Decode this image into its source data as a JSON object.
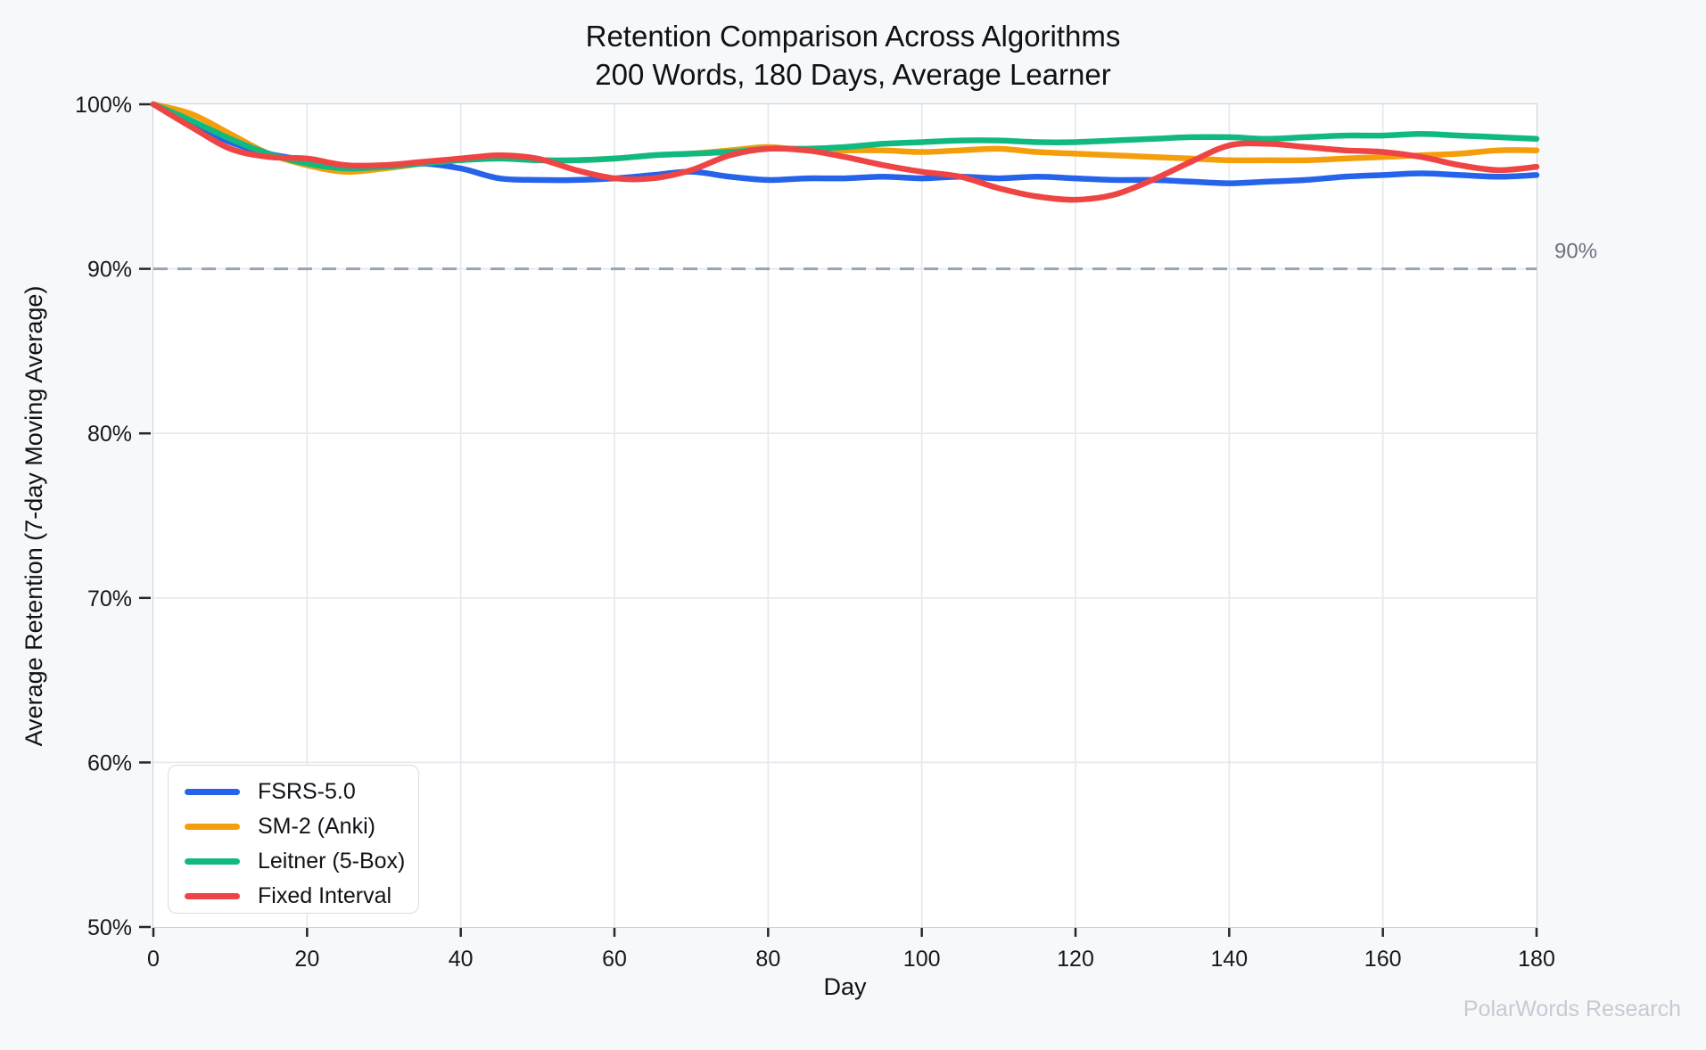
{
  "page": {
    "watermark": "PolarWords Research"
  },
  "chart_data": {
    "type": "line",
    "title": "Retention Comparison Across Algorithms",
    "subtitle": "200 Words, 180 Days, Average Learner",
    "xlabel": "Day",
    "ylabel": "Average Retention (7-day Moving Average)",
    "xlim": [
      0,
      180
    ],
    "ylim": [
      50,
      100
    ],
    "xticks": [
      0,
      20,
      40,
      60,
      80,
      100,
      120,
      140,
      160,
      180
    ],
    "yticks": [
      50,
      60,
      70,
      80,
      90,
      100
    ],
    "ytick_suffix": "%",
    "grid": true,
    "legend_position": "lower-left",
    "threshold": {
      "value": 90,
      "label": "90%",
      "color": "#9aa3b0",
      "style": "dashed"
    },
    "x": [
      0,
      5,
      10,
      15,
      20,
      25,
      30,
      35,
      40,
      45,
      50,
      55,
      60,
      65,
      70,
      75,
      80,
      85,
      90,
      95,
      100,
      105,
      110,
      115,
      120,
      125,
      130,
      135,
      140,
      145,
      150,
      155,
      160,
      165,
      170,
      175,
      180
    ],
    "series": [
      {
        "name": "FSRS-5.0",
        "color": "#2563eb",
        "values": [
          100,
          98.8,
          97.7,
          97.0,
          96.6,
          96.3,
          96.2,
          96.4,
          96.1,
          95.5,
          95.4,
          95.4,
          95.5,
          95.7,
          95.9,
          95.6,
          95.4,
          95.5,
          95.5,
          95.6,
          95.5,
          95.6,
          95.5,
          95.6,
          95.5,
          95.4,
          95.4,
          95.3,
          95.2,
          95.3,
          95.4,
          95.6,
          95.7,
          95.8,
          95.7,
          95.6,
          95.7
        ]
      },
      {
        "name": "SM-2 (Anki)",
        "color": "#f59e0b",
        "values": [
          100,
          99.4,
          98.2,
          97.0,
          96.3,
          95.9,
          96.1,
          96.4,
          96.7,
          96.8,
          96.6,
          96.6,
          96.7,
          96.9,
          97.0,
          97.2,
          97.4,
          97.2,
          97.2,
          97.2,
          97.1,
          97.2,
          97.3,
          97.1,
          97.0,
          96.9,
          96.8,
          96.7,
          96.6,
          96.6,
          96.6,
          96.7,
          96.8,
          96.9,
          97.0,
          97.2,
          97.2
        ]
      },
      {
        "name": "Leitner (5-Box)",
        "color": "#10b981",
        "values": [
          100,
          99.0,
          97.9,
          97.0,
          96.4,
          96.1,
          96.2,
          96.4,
          96.6,
          96.7,
          96.6,
          96.6,
          96.7,
          96.9,
          97.0,
          97.1,
          97.3,
          97.3,
          97.4,
          97.6,
          97.7,
          97.8,
          97.8,
          97.7,
          97.7,
          97.8,
          97.9,
          98.0,
          98.0,
          97.9,
          98.0,
          98.1,
          98.1,
          98.2,
          98.1,
          98.0,
          97.9
        ]
      },
      {
        "name": "Fixed Interval",
        "color": "#ef4444",
        "values": [
          100,
          98.6,
          97.3,
          96.8,
          96.7,
          96.3,
          96.3,
          96.5,
          96.7,
          96.9,
          96.7,
          96.0,
          95.5,
          95.5,
          96.0,
          96.9,
          97.3,
          97.2,
          96.8,
          96.3,
          95.9,
          95.6,
          94.9,
          94.4,
          94.2,
          94.5,
          95.4,
          96.5,
          97.5,
          97.6,
          97.4,
          97.2,
          97.1,
          96.8,
          96.3,
          96.0,
          96.2
        ]
      }
    ],
    "style": {
      "line_width": 6.5,
      "grid_color": "#e5e8ee",
      "spine_color": "#ccd0d7",
      "tick_color": "#24262b",
      "plot_bg": "#ffffff",
      "page_bg": "#f7f8fa"
    }
  }
}
